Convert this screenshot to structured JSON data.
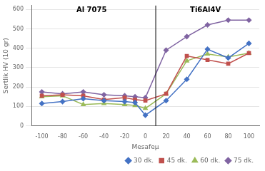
{
  "chart_data": {
    "type": "line",
    "x": [
      -100,
      -80,
      -60,
      -40,
      -20,
      -10,
      0,
      20,
      40,
      60,
      80,
      100
    ],
    "series": [
      {
        "name": "30 dk.",
        "color": "#4472C4",
        "marker": "diamond",
        "values": [
          115,
          125,
          140,
          130,
          125,
          120,
          55,
          130,
          240,
          395,
          350,
          425
        ]
      },
      {
        "name": "45 dk.",
        "color": "#C0504D",
        "marker": "square",
        "values": [
          155,
          160,
          155,
          135,
          145,
          135,
          130,
          165,
          360,
          340,
          320,
          375
        ]
      },
      {
        "name": "60 dk.",
        "color": "#9BBB59",
        "marker": "triangle",
        "values": [
          150,
          155,
          110,
          115,
          110,
          105,
          90,
          165,
          335,
          370,
          355,
          375
        ]
      },
      {
        "name": "75 dk.",
        "color": "#8064A2",
        "marker": "diamond",
        "values": [
          175,
          165,
          175,
          160,
          155,
          150,
          145,
          390,
          460,
          520,
          545,
          545
        ]
      }
    ],
    "xlabel": "Mesafeμ",
    "ylabel": "Sertlik HV (10 gr)",
    "xlim": [
      -110,
      110
    ],
    "xticks": [
      -100,
      -80,
      -60,
      -40,
      -20,
      0,
      20,
      40,
      60,
      80,
      100
    ],
    "ylim": [
      0,
      620
    ],
    "yticks": [
      0,
      100,
      200,
      300,
      400,
      500,
      600
    ],
    "annotations": [
      {
        "text": "Al 7075",
        "x": -52,
        "y": 615
      },
      {
        "text": "Ti6Al4V",
        "x": 58,
        "y": 615
      }
    ],
    "vlines": [
      10
    ],
    "grid": "y",
    "legend": "lower right"
  }
}
